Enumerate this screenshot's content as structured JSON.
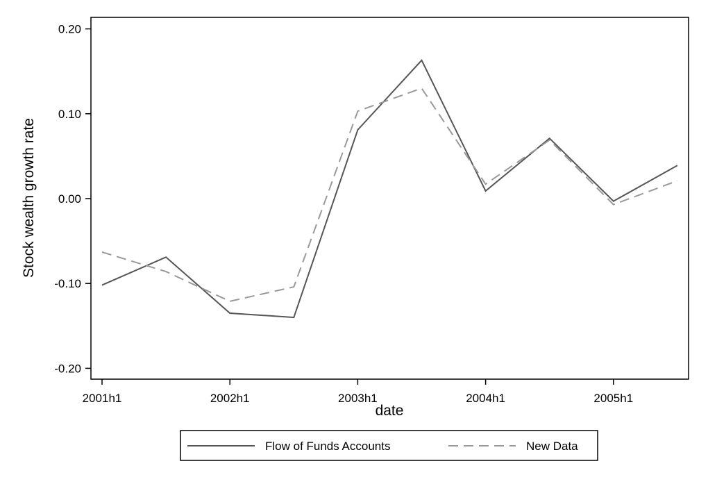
{
  "chart_data": {
    "type": "line",
    "title": "",
    "xlabel": "date",
    "ylabel": "Stock wealth growth rate",
    "x": [
      "2001h1",
      "2001h2",
      "2002h1",
      "2002h2",
      "2003h1",
      "2003h2",
      "2004h1",
      "2004h2",
      "2005h1",
      "2005h2"
    ],
    "x_tick_labels": [
      "2001h1",
      "2002h1",
      "2003h1",
      "2004h1",
      "2005h1"
    ],
    "y_tick_labels": [
      "0.20",
      "0.10",
      "0.00",
      "-0.10",
      "-0.20"
    ],
    "y_ticks": [
      0.2,
      0.1,
      0.0,
      -0.1,
      -0.2
    ],
    "ylim": [
      -0.21,
      0.21
    ],
    "grid": false,
    "legend_position": "bottom",
    "series": [
      {
        "name": "Flow of Funds Accounts",
        "style": "solid",
        "color": "#555555",
        "values": [
          -0.102,
          -0.069,
          -0.135,
          -0.14,
          0.081,
          0.163,
          0.009,
          0.071,
          -0.003,
          0.039
        ]
      },
      {
        "name": "New Data",
        "style": "dashed",
        "color": "#999999",
        "values": [
          -0.063,
          -0.086,
          -0.121,
          -0.104,
          0.103,
          0.13,
          0.017,
          0.069,
          -0.007,
          0.021
        ]
      }
    ]
  }
}
